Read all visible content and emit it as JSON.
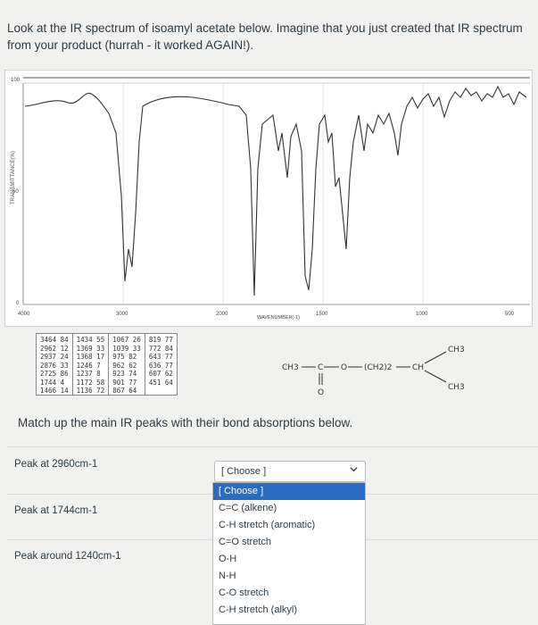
{
  "intro_text": "Look at the IR spectrum of isoamyl acetate below. Imagine that you just created that IR spectrum from your product (hurrah - it worked AGAIN!).",
  "spectrum": {
    "y_axis_label": "TRANSMITTANCE(%)",
    "x_axis_label": "WAVENUMBER(-1)",
    "y_ticks": [
      "100",
      "50",
      "0"
    ],
    "x_ticks": [
      "4000",
      "3000",
      "2000",
      "1500",
      "1000",
      "500"
    ]
  },
  "peak_table": [
    [
      "3464  84",
      "2962  12",
      "2937  24",
      "2876  33",
      "2725  86",
      "1744   4",
      "1466  14"
    ],
    [
      "1434  55",
      "1369  33",
      "1368  17",
      "1246   7",
      "1237   8",
      "1172  58",
      "1136  72"
    ],
    [
      "1067  26",
      "1039  33",
      "975  82",
      "962  62",
      "923  74",
      "901  77",
      "867  64"
    ],
    [
      "819  77",
      "772  84",
      "643  77",
      "636  77",
      "607  62",
      "451  64"
    ]
  ],
  "structure": {
    "ch3_left": "CH3",
    "c": "C",
    "o_single": "O",
    "ch2_group": "(CH2)2",
    "ch": "CH",
    "ch3_top": "CH3",
    "ch3_bottom": "CH3",
    "o_double": "O"
  },
  "match_title": "Match up the main IR peaks with their bond absorptions below.",
  "questions": [
    {
      "label": "Peak at 2960cm-1"
    },
    {
      "label": "Peak at 1744cm-1"
    },
    {
      "label": "Peak around 1240cm-1"
    }
  ],
  "select": {
    "value": "[ Choose ]",
    "chevron": "chevron-down-icon"
  },
  "dropdown_options": [
    "[ Choose ]",
    "C=C (alkene)",
    "C-H stretch (aromatic)",
    "C=O stretch",
    "O-H",
    "N-H",
    "C-O stretch",
    "C-H stretch (alkyl)"
  ],
  "colors": {
    "selected_option_bg": "#2a6cc4",
    "text": "#2d3b45",
    "page_bg": "#f1f1ef"
  }
}
